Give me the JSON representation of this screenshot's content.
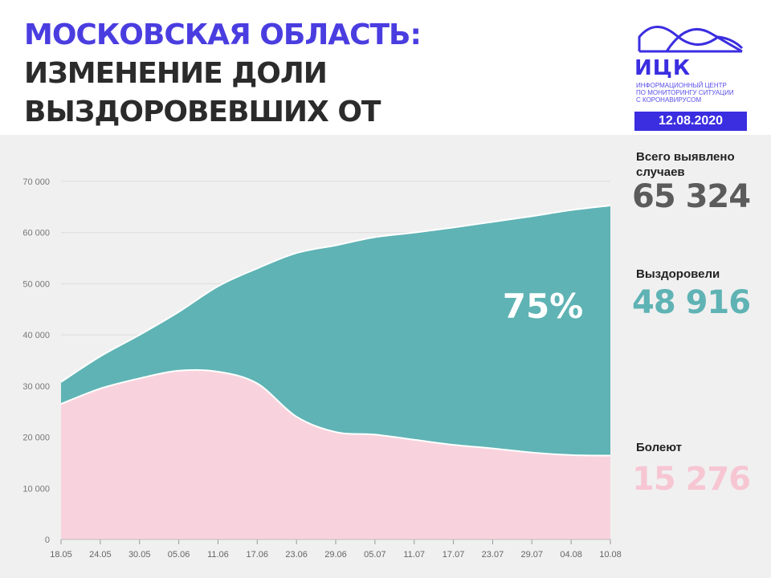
{
  "header": {
    "title_region": "Московская область:",
    "title_rest": "изменение доли выздоровевших от коронавируса",
    "logo_name": "ИЦК",
    "logo_subtitle": [
      "Информационный центр",
      "по мониторингу ситуации",
      "с коронавирусом"
    ],
    "date": "12.08.2020"
  },
  "stats": {
    "total_label_line1": "Всего выявлено",
    "total_label_line2": "случаев",
    "total_value": "65 324",
    "recovered_label": "Выздоровели",
    "recovered_value": "48 916",
    "sick_label": "Болеют",
    "sick_value": "15 276"
  },
  "colors": {
    "accent": "#4a3de0",
    "recovered": "#5fb3b4",
    "sick": "#f8d3dd",
    "total_value": "#5b5b5b",
    "recovered_value": "#5fb3b4",
    "sick_value": "#f7c6d3"
  },
  "chart_data": {
    "type": "area",
    "stacked": true,
    "annotation": "75%",
    "x_ticks": [
      "18.05",
      "24.05",
      "30.05",
      "05.06",
      "11.06",
      "17.06",
      "23.06",
      "29.06",
      "05.07",
      "11.07",
      "17.07",
      "23.07",
      "29.07",
      "04.08",
      "10.08"
    ],
    "y_ticks": [
      "0",
      "10 000",
      "20 000",
      "30 000",
      "40 000",
      "50 000",
      "60 000",
      "70 000"
    ],
    "ylim": [
      0,
      70000
    ],
    "grid": true,
    "series": [
      {
        "name": "Болеют",
        "values": [
          26500,
          29500,
          31500,
          33000,
          32800,
          30500,
          24000,
          21000,
          20500,
          19500,
          18500,
          17800,
          17000,
          16500,
          16400
        ]
      },
      {
        "name": "Выздоровели",
        "values": [
          4300,
          6300,
          8500,
          11500,
          16700,
          22500,
          32000,
          36500,
          38600,
          40500,
          42500,
          44300,
          46200,
          47900,
          48900
        ]
      }
    ]
  }
}
